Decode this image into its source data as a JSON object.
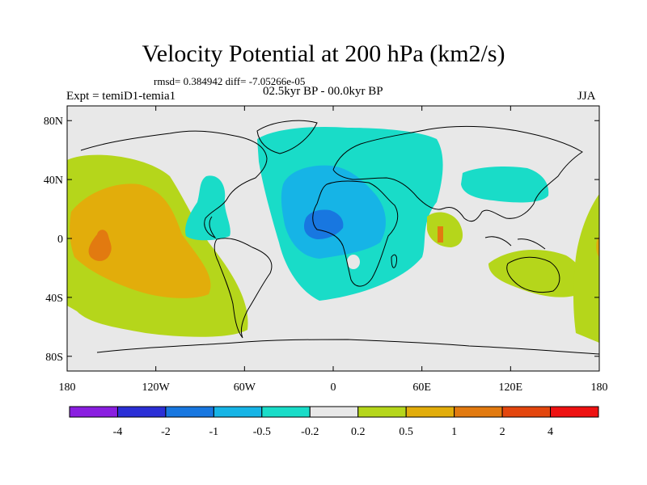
{
  "title": "Velocity Potential at 200 hPa (km2/s)",
  "stats_text": "rmsd= 0.384942  diff= -7.05266e-05",
  "left_label": "Expt = temiD1-temia1",
  "center_label": "02.5kyr BP - 00.0kyr BP",
  "right_label": "JJA",
  "map": {
    "projection": "cylindrical equidistant",
    "lon_range": [
      -180,
      180
    ],
    "lat_range": [
      -90,
      90
    ],
    "lon_ticks": [
      "180",
      "120W",
      "60W",
      "0",
      "60E",
      "120E",
      "180"
    ],
    "lat_ticks": [
      "80N",
      "40N",
      "0",
      "40S",
      "80S"
    ],
    "background_color": "#e8e8e8"
  },
  "colorbar": {
    "colors": [
      "#8a1ee0",
      "#2b2fd6",
      "#1877e0",
      "#16b4e6",
      "#19dcc8",
      "#e8e8e8",
      "#b5d61b",
      "#e2ad0b",
      "#e27a10",
      "#e3460e",
      "#ee1212"
    ],
    "labels": [
      "-4",
      "-2",
      "-1",
      "-0.5",
      "-0.2",
      "0.2",
      "0.5",
      "1",
      "2",
      "4"
    ]
  }
}
